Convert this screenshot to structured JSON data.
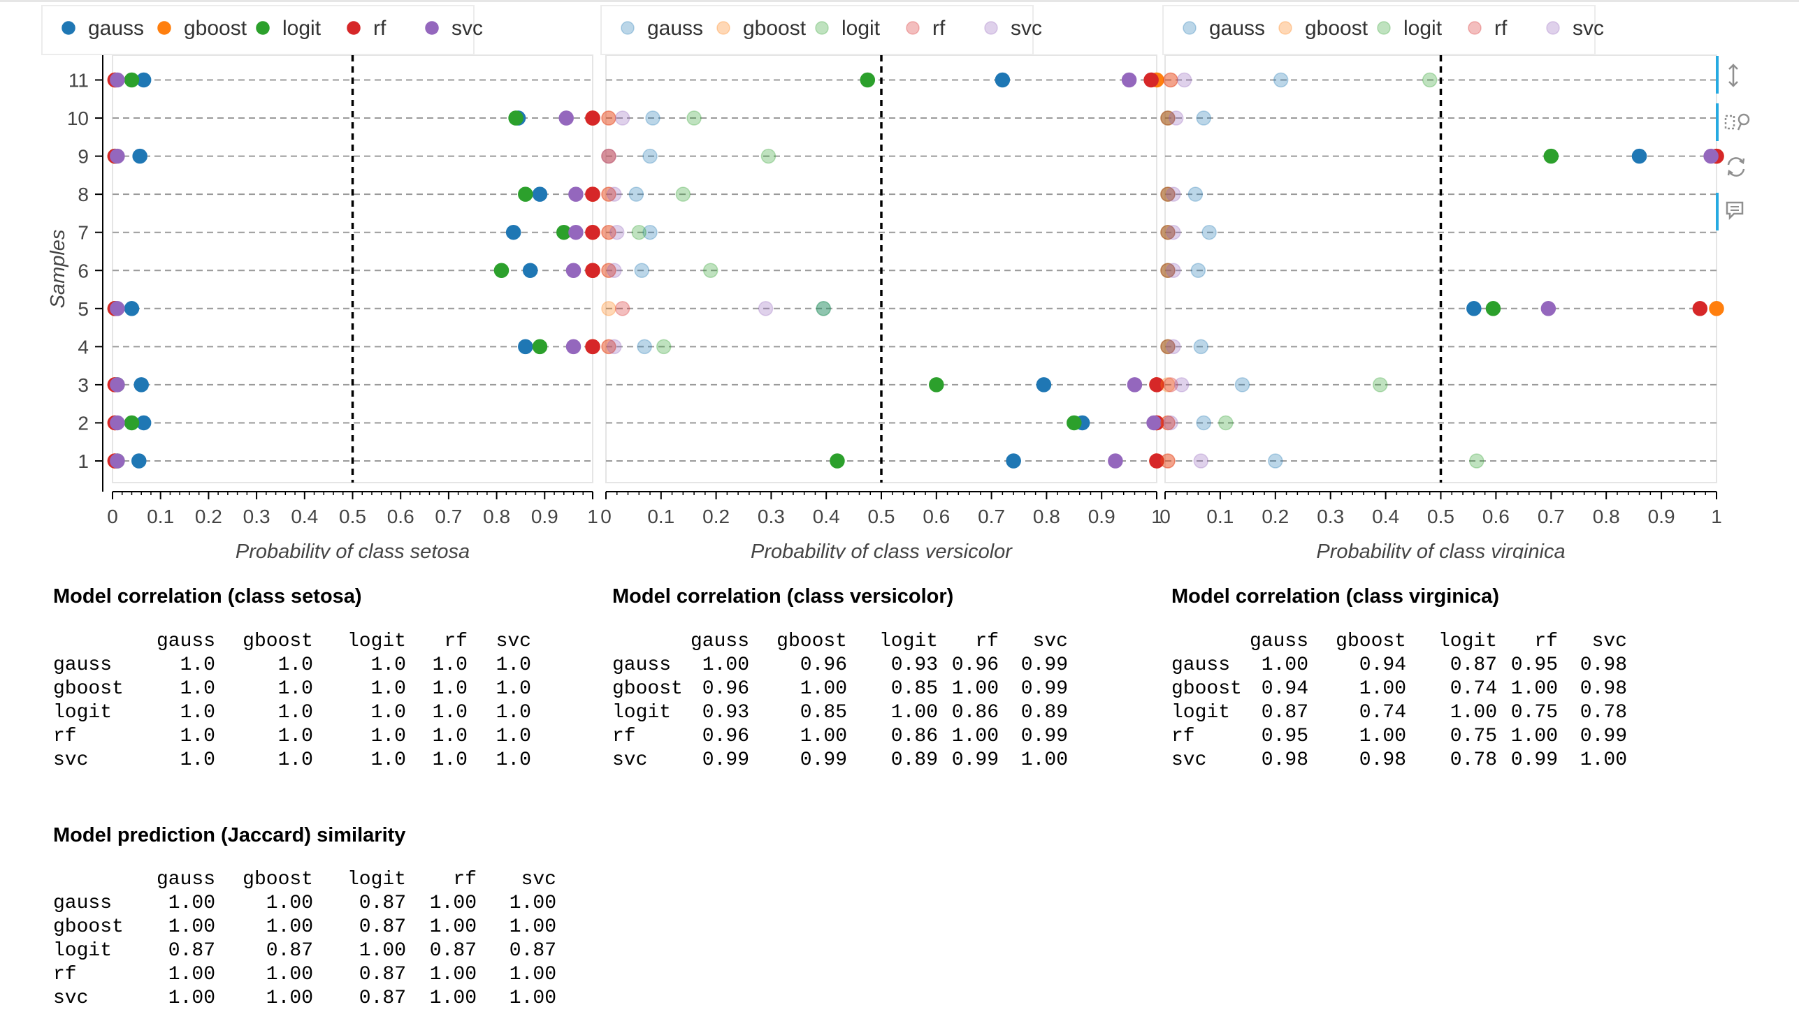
{
  "toolbar": {
    "tools": [
      {
        "name": "ywheel-zoom-tool",
        "label": "Wheel Zoom (y-axis)",
        "active": true
      },
      {
        "name": "box-zoom-tool",
        "label": "Box Zoom",
        "active": true
      },
      {
        "name": "reset-tool",
        "label": "Reset",
        "active": false
      },
      {
        "name": "hover-tool",
        "label": "Hover",
        "active": true
      }
    ]
  },
  "chart_data": [
    {
      "type": "scatter",
      "title": "",
      "xlabel": "Probability of class setosa",
      "ylabel": "Samples",
      "xlim": [
        0,
        1
      ],
      "ylim": [
        0.5,
        11.5
      ],
      "x_ticks": [
        "0",
        "0.1",
        "0.2",
        "0.3",
        "0.4",
        "0.5",
        "0.6",
        "0.7",
        "0.8",
        "0.9",
        "1"
      ],
      "y_ticks": [
        "1",
        "2",
        "3",
        "4",
        "5",
        "6",
        "7",
        "8",
        "9",
        "10",
        "11"
      ],
      "threshold": 0.5,
      "legend": {
        "placement": "top-left",
        "muted": false
      },
      "misclassified_samples": [
        4,
        6,
        7,
        8,
        10
      ],
      "y": [
        1,
        2,
        3,
        4,
        5,
        6,
        7,
        8,
        9,
        10,
        11
      ],
      "series": [
        {
          "name": "gauss",
          "color": "#1f77b4",
          "values": [
            0.055,
            0.065,
            0.06,
            0.86,
            0.04,
            0.87,
            0.835,
            0.89,
            0.057,
            0.845,
            0.065
          ]
        },
        {
          "name": "gboost",
          "color": "#ff7f0e",
          "values": [
            0.005,
            0.005,
            0.005,
            1.0,
            0.005,
            1.0,
            1.0,
            1.0,
            0.005,
            1.0,
            0.005
          ]
        },
        {
          "name": "logit",
          "color": "#2ca02c",
          "values": [
            0.01,
            0.04,
            0.01,
            0.89,
            0.005,
            0.81,
            0.94,
            0.86,
            0.005,
            0.84,
            0.04
          ]
        },
        {
          "name": "rf",
          "color": "#d62728",
          "values": [
            0.005,
            0.005,
            0.005,
            1.0,
            0.005,
            1.0,
            1.0,
            1.0,
            0.005,
            1.0,
            0.005
          ]
        },
        {
          "name": "svc",
          "color": "#9467bd",
          "values": [
            0.01,
            0.01,
            0.01,
            0.96,
            0.01,
            0.96,
            0.965,
            0.965,
            0.01,
            0.945,
            0.01
          ]
        }
      ]
    },
    {
      "type": "scatter",
      "title": "",
      "xlabel": "Probability of class versicolor",
      "ylabel": "",
      "xlim": [
        0,
        1
      ],
      "ylim": [
        0.5,
        11.5
      ],
      "x_ticks": [
        "0",
        "0.1",
        "0.2",
        "0.3",
        "0.4",
        "0.5",
        "0.6",
        "0.7",
        "0.8",
        "0.9",
        "1"
      ],
      "y_ticks": [],
      "threshold": 0.5,
      "legend": {
        "placement": "top-left",
        "muted": true
      },
      "misclassified_samples": [
        1,
        2,
        3,
        11
      ],
      "y": [
        1,
        2,
        3,
        4,
        5,
        6,
        7,
        8,
        9,
        10,
        11
      ],
      "series": [
        {
          "name": "gauss",
          "color": "#1f77b4",
          "values": [
            0.74,
            0.865,
            0.795,
            0.07,
            0.395,
            0.065,
            0.08,
            0.055,
            0.08,
            0.085,
            0.72
          ]
        },
        {
          "name": "gboost",
          "color": "#ff7f0e",
          "values": [
            1.0,
            1.0,
            1.0,
            0.005,
            0.005,
            0.005,
            0.005,
            0.005,
            0.005,
            0.005,
            1.0
          ]
        },
        {
          "name": "logit",
          "color": "#2ca02c",
          "values": [
            0.42,
            0.85,
            0.6,
            0.105,
            0.395,
            0.19,
            0.06,
            0.14,
            0.295,
            0.16,
            0.475
          ]
        },
        {
          "name": "rf",
          "color": "#d62728",
          "values": [
            1.0,
            1.0,
            1.0,
            0.005,
            0.03,
            0.005,
            0.005,
            0.005,
            0.005,
            0.005,
            0.99
          ]
        },
        {
          "name": "svc",
          "color": "#9467bd",
          "values": [
            0.925,
            0.995,
            0.96,
            0.015,
            0.29,
            0.015,
            0.02,
            0.015,
            0.005,
            0.03,
            0.95
          ]
        }
      ]
    },
    {
      "type": "scatter",
      "title": "",
      "xlabel": "Probability of class virginica",
      "ylabel": "",
      "xlim": [
        0,
        1
      ],
      "ylim": [
        0.5,
        11.5
      ],
      "x_ticks": [
        "0",
        "0.1",
        "0.2",
        "0.3",
        "0.4",
        "0.5",
        "0.6",
        "0.7",
        "0.8",
        "0.9",
        "1"
      ],
      "y_ticks": [],
      "threshold": 0.5,
      "legend": {
        "placement": "top-left",
        "muted": true
      },
      "misclassified_samples": [
        5,
        9
      ],
      "y": [
        1,
        2,
        3,
        4,
        5,
        6,
        7,
        8,
        9,
        10,
        11
      ],
      "series": [
        {
          "name": "gauss",
          "color": "#1f77b4",
          "values": [
            0.2,
            0.07,
            0.14,
            0.065,
            0.56,
            0.06,
            0.08,
            0.055,
            0.86,
            0.07,
            0.21
          ]
        },
        {
          "name": "gboost",
          "color": "#ff7f0e",
          "values": [
            0.005,
            0.005,
            0.005,
            0.005,
            1.0,
            0.005,
            0.005,
            0.005,
            1.0,
            0.005,
            0.01
          ]
        },
        {
          "name": "logit",
          "color": "#2ca02c",
          "values": [
            0.565,
            0.11,
            0.39,
            0.005,
            0.595,
            0.005,
            0.005,
            0.005,
            0.7,
            0.005,
            0.48
          ]
        },
        {
          "name": "rf",
          "color": "#d62728",
          "values": [
            0.005,
            0.005,
            0.01,
            0.005,
            0.97,
            0.005,
            0.005,
            0.005,
            1.0,
            0.005,
            0.01
          ]
        },
        {
          "name": "svc",
          "color": "#9467bd",
          "values": [
            0.065,
            0.01,
            0.03,
            0.015,
            0.695,
            0.015,
            0.015,
            0.015,
            0.99,
            0.02,
            0.035
          ]
        }
      ]
    }
  ],
  "tables": [
    {
      "title": "Model correlation (class setosa)",
      "columns": [
        "gauss",
        "gboost",
        "logit",
        "rf",
        "svc"
      ],
      "rows": [
        {
          "name": "gauss",
          "values": [
            "1.0",
            "1.0",
            "1.0",
            "1.0",
            "1.0"
          ]
        },
        {
          "name": "gboost",
          "values": [
            "1.0",
            "1.0",
            "1.0",
            "1.0",
            "1.0"
          ]
        },
        {
          "name": "logit",
          "values": [
            "1.0",
            "1.0",
            "1.0",
            "1.0",
            "1.0"
          ]
        },
        {
          "name": "rf",
          "values": [
            "1.0",
            "1.0",
            "1.0",
            "1.0",
            "1.0"
          ]
        },
        {
          "name": "svc",
          "values": [
            "1.0",
            "1.0",
            "1.0",
            "1.0",
            "1.0"
          ]
        }
      ]
    },
    {
      "title": "Model correlation (class versicolor)",
      "columns": [
        "gauss",
        "gboost",
        "logit",
        "rf",
        "svc"
      ],
      "rows": [
        {
          "name": "gauss",
          "values": [
            "1.00",
            "0.96",
            "0.93",
            "0.96",
            "0.99"
          ]
        },
        {
          "name": "gboost",
          "values": [
            "0.96",
            "1.00",
            "0.85",
            "1.00",
            "0.99"
          ]
        },
        {
          "name": "logit",
          "values": [
            "0.93",
            "0.85",
            "1.00",
            "0.86",
            "0.89"
          ]
        },
        {
          "name": "rf",
          "values": [
            "0.96",
            "1.00",
            "0.86",
            "1.00",
            "0.99"
          ]
        },
        {
          "name": "svc",
          "values": [
            "0.99",
            "0.99",
            "0.89",
            "0.99",
            "1.00"
          ]
        }
      ]
    },
    {
      "title": "Model correlation (class virginica)",
      "columns": [
        "gauss",
        "gboost",
        "logit",
        "rf",
        "svc"
      ],
      "rows": [
        {
          "name": "gauss",
          "values": [
            "1.00",
            "0.94",
            "0.87",
            "0.95",
            "0.98"
          ]
        },
        {
          "name": "gboost",
          "values": [
            "0.94",
            "1.00",
            "0.74",
            "1.00",
            "0.98"
          ]
        },
        {
          "name": "logit",
          "values": [
            "0.87",
            "0.74",
            "1.00",
            "0.75",
            "0.78"
          ]
        },
        {
          "name": "rf",
          "values": [
            "0.95",
            "1.00",
            "0.75",
            "1.00",
            "0.99"
          ]
        },
        {
          "name": "svc",
          "values": [
            "0.98",
            "0.98",
            "0.78",
            "0.99",
            "1.00"
          ]
        }
      ]
    },
    {
      "title": "Model prediction (Jaccard) similarity",
      "columns": [
        "gauss",
        "gboost",
        "logit",
        "rf",
        "svc"
      ],
      "rows": [
        {
          "name": "gauss",
          "values": [
            "1.00",
            "1.00",
            "0.87",
            "1.00",
            "1.00"
          ]
        },
        {
          "name": "gboost",
          "values": [
            "1.00",
            "1.00",
            "0.87",
            "1.00",
            "1.00"
          ]
        },
        {
          "name": "logit",
          "values": [
            "0.87",
            "0.87",
            "1.00",
            "0.87",
            "0.87"
          ]
        },
        {
          "name": "rf",
          "values": [
            "1.00",
            "1.00",
            "0.87",
            "1.00",
            "1.00"
          ]
        },
        {
          "name": "svc",
          "values": [
            "1.00",
            "1.00",
            "0.87",
            "1.00",
            "1.00"
          ]
        }
      ]
    }
  ]
}
